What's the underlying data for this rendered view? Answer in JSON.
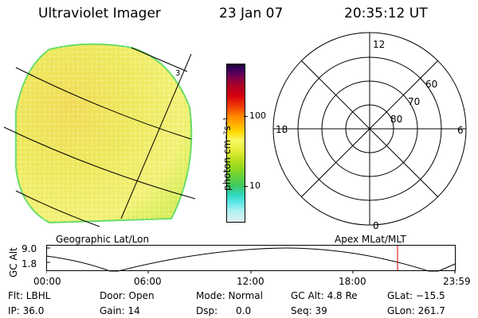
{
  "header": {
    "instrument": "Ultraviolet Imager",
    "date": "23 Jan 07",
    "time": "20:35:12 UT"
  },
  "left_panel": {
    "label": "Geographic Lat/Lon",
    "marker": "3"
  },
  "colorbar": {
    "unit_label": "photon cm⁻²s⁻¹",
    "ticks": [
      "100",
      "10"
    ]
  },
  "polar": {
    "label": "Apex MLat/MLT",
    "mlt_labels": {
      "top": "12",
      "right": "6",
      "bottom": "0",
      "left": "18"
    },
    "lat_labels": [
      "60",
      "70",
      "80"
    ]
  },
  "timeline": {
    "ylabel": "GC Alt",
    "yticks": [
      "9.0",
      "1.8"
    ],
    "xticks": [
      "00:00",
      "06:00",
      "12:00",
      "18:00",
      "23:59"
    ],
    "colors": {
      "marker": "#cc0000",
      "curve": "#000000"
    }
  },
  "info": {
    "row1": {
      "filter": "Flt: LBHL",
      "door": "Door: Open",
      "mode": "Mode: Normal",
      "gc_alt": "GC Alt: 4.8 Re",
      "glat": "GLat: −15.5"
    },
    "row2": {
      "ip": "IP: 36.0",
      "gain": "Gain: 14",
      "dsp": "Dsp:      0.0",
      "seq": "Seq: 39",
      "glon": "GLon: 261.7"
    }
  }
}
